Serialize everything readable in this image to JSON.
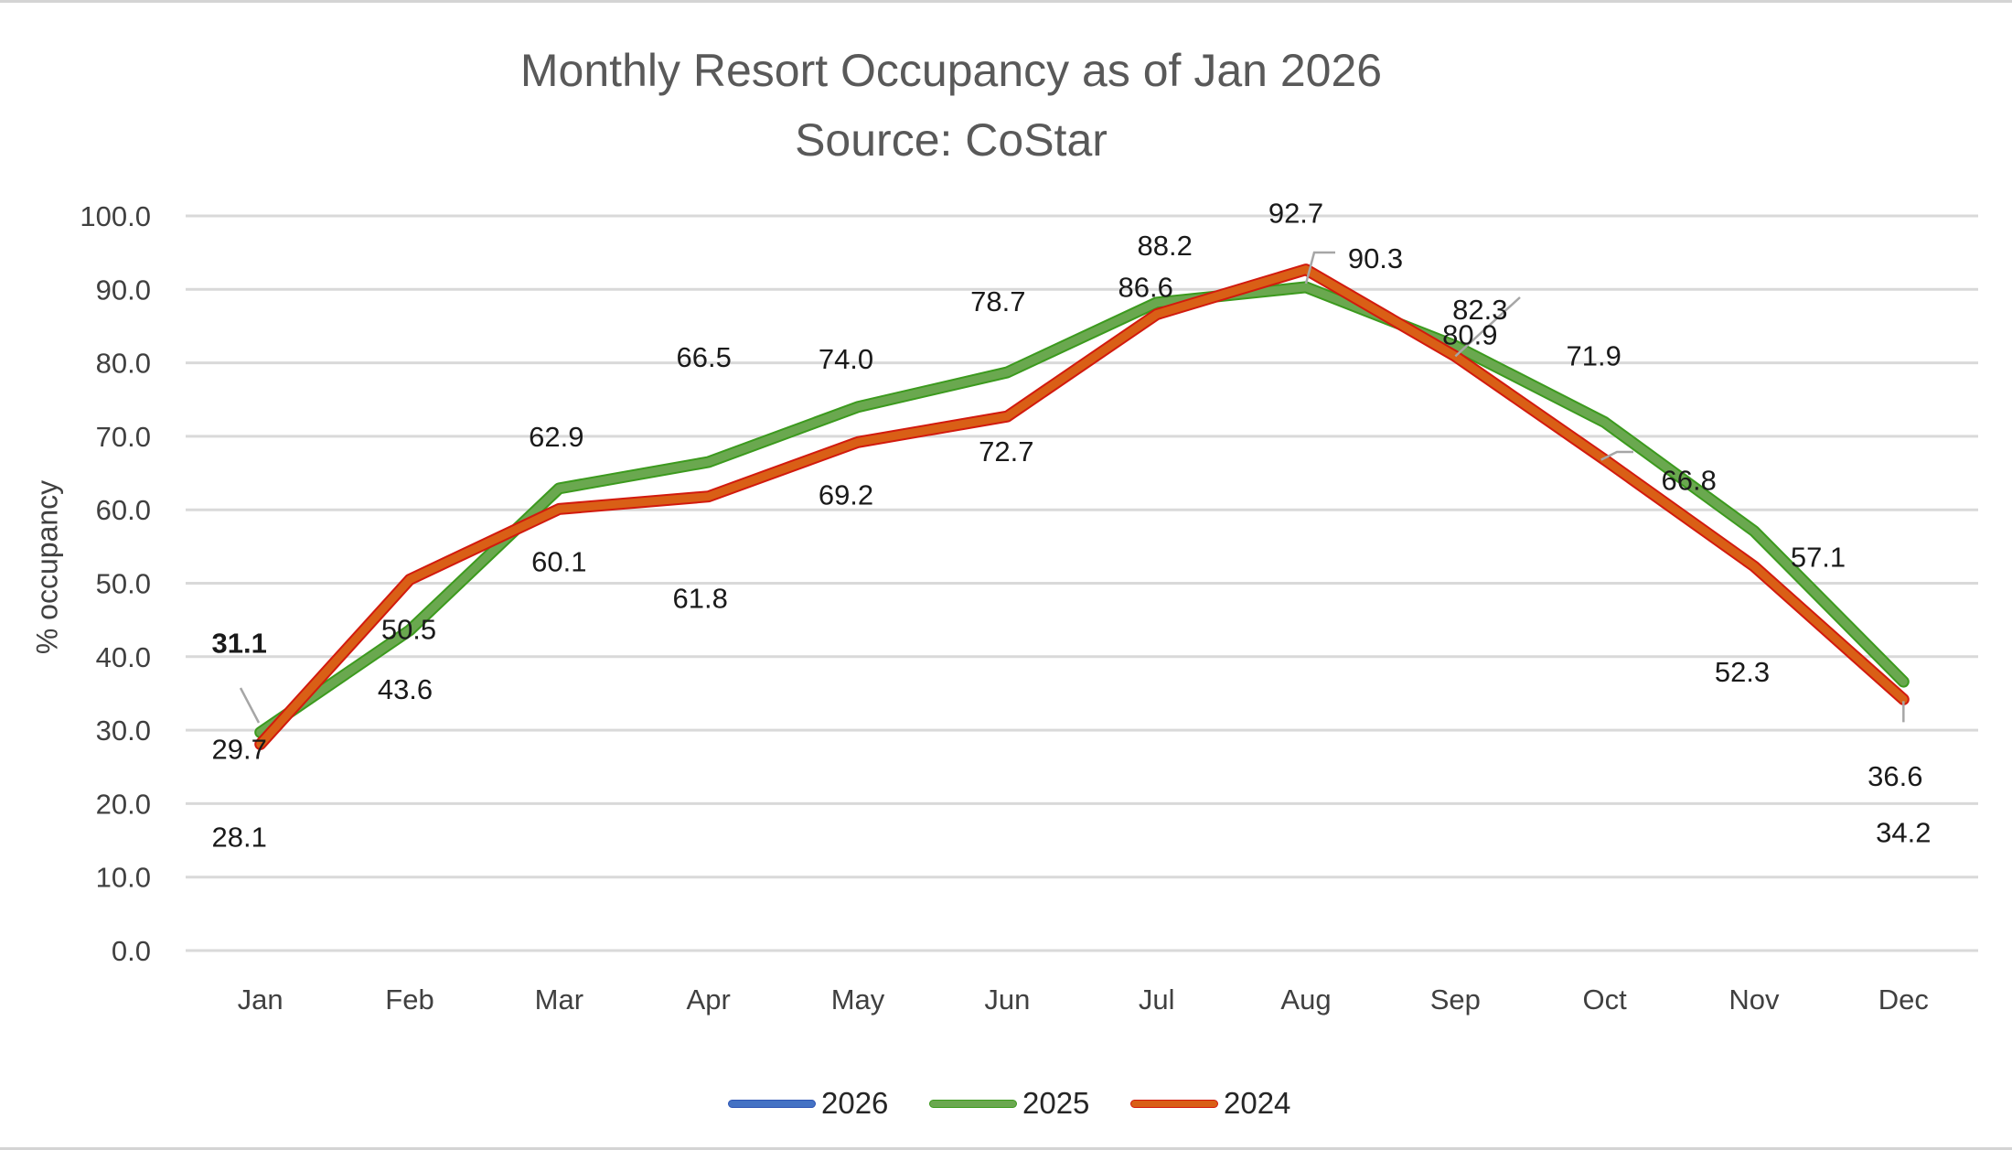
{
  "chart_data": {
    "type": "line",
    "title": "Monthly Resort Occupancy as of Jan 2026",
    "subtitle": "Source: CoStar",
    "xlabel": "",
    "ylabel": "% occupancy",
    "categories": [
      "Jan",
      "Feb",
      "Mar",
      "Apr",
      "May",
      "Jun",
      "Jul",
      "Aug",
      "Sep",
      "Oct",
      "Nov",
      "Dec"
    ],
    "ylim": [
      0,
      100
    ],
    "yticks": [
      "0.0",
      "10.0",
      "20.0",
      "30.0",
      "40.0",
      "50.0",
      "60.0",
      "70.0",
      "80.0",
      "90.0",
      "100.0"
    ],
    "grid": true,
    "legend_position": "bottom",
    "series": [
      {
        "name": "2026",
        "color": "#4472c4",
        "values": [
          31.1,
          null,
          null,
          null,
          null,
          null,
          null,
          null,
          null,
          null,
          null,
          null
        ]
      },
      {
        "name": "2025",
        "color": "#6aa84f",
        "values": [
          29.7,
          43.6,
          62.9,
          66.5,
          74.0,
          78.7,
          88.2,
          90.3,
          82.3,
          71.9,
          57.1,
          36.6
        ]
      },
      {
        "name": "2024",
        "color": "#d95f16",
        "values": [
          28.1,
          50.5,
          60.1,
          61.8,
          69.2,
          72.7,
          86.6,
          92.7,
          80.9,
          66.8,
          52.3,
          34.2
        ]
      }
    ]
  }
}
